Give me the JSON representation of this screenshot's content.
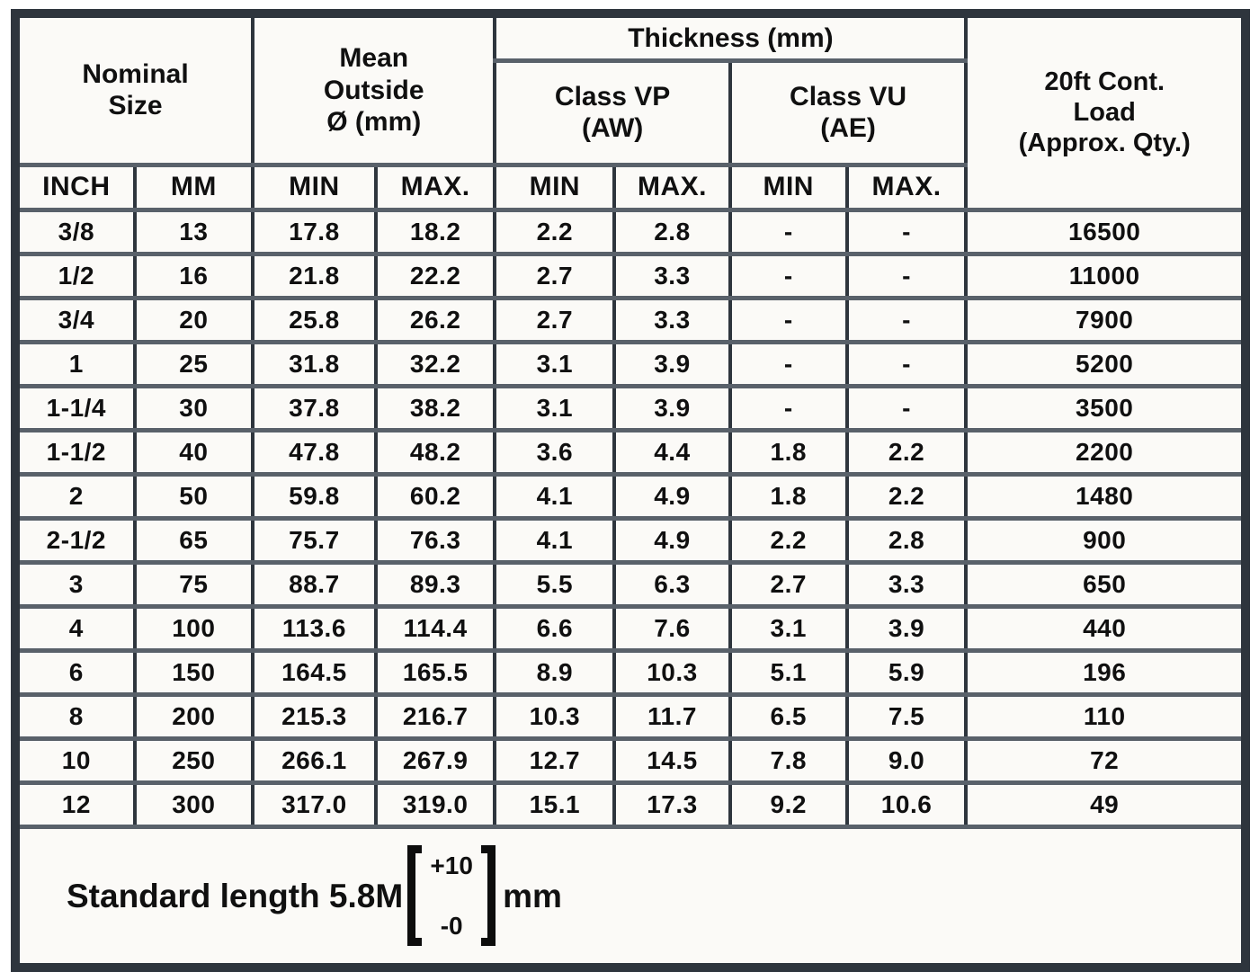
{
  "colors": {
    "border_dark": "#2e353d",
    "border_mid": "#59616a",
    "background": "#fbfaf7",
    "text": "#101010"
  },
  "table": {
    "header": {
      "nominal_size": "Nominal\nSize",
      "mean_outside": "Mean\nOutside\nØ (mm)",
      "thickness": "Thickness (mm)",
      "class_vp": "Class VP\n(AW)",
      "class_vu": "Class VU\n(AE)",
      "load": "20ft Cont.\nLoad\n(Approx. Qty.)",
      "sub_headers": [
        "INCH",
        "MM",
        "MIN",
        "MAX.",
        "MIN",
        "MAX.",
        "MIN",
        "MAX."
      ]
    },
    "rows": [
      [
        "3/8",
        "13",
        "17.8",
        "18.2",
        "2.2",
        "2.8",
        "-",
        "-",
        "16500"
      ],
      [
        "1/2",
        "16",
        "21.8",
        "22.2",
        "2.7",
        "3.3",
        "-",
        "-",
        "11000"
      ],
      [
        "3/4",
        "20",
        "25.8",
        "26.2",
        "2.7",
        "3.3",
        "-",
        "-",
        "7900"
      ],
      [
        "1",
        "25",
        "31.8",
        "32.2",
        "3.1",
        "3.9",
        "-",
        "-",
        "5200"
      ],
      [
        "1-1/4",
        "30",
        "37.8",
        "38.2",
        "3.1",
        "3.9",
        "-",
        "-",
        "3500"
      ],
      [
        "1-1/2",
        "40",
        "47.8",
        "48.2",
        "3.6",
        "4.4",
        "1.8",
        "2.2",
        "2200"
      ],
      [
        "2",
        "50",
        "59.8",
        "60.2",
        "4.1",
        "4.9",
        "1.8",
        "2.2",
        "1480"
      ],
      [
        "2-1/2",
        "65",
        "75.7",
        "76.3",
        "4.1",
        "4.9",
        "2.2",
        "2.8",
        "900"
      ],
      [
        "3",
        "75",
        "88.7",
        "89.3",
        "5.5",
        "6.3",
        "2.7",
        "3.3",
        "650"
      ],
      [
        "4",
        "100",
        "113.6",
        "114.4",
        "6.6",
        "7.6",
        "3.1",
        "3.9",
        "440"
      ],
      [
        "6",
        "150",
        "164.5",
        "165.5",
        "8.9",
        "10.3",
        "5.1",
        "5.9",
        "196"
      ],
      [
        "8",
        "200",
        "215.3",
        "216.7",
        "10.3",
        "11.7",
        "6.5",
        "7.5",
        "110"
      ],
      [
        "10",
        "250",
        "266.1",
        "267.9",
        "12.7",
        "14.5",
        "7.8",
        "9.0",
        "72"
      ],
      [
        "12",
        "300",
        "317.0",
        "319.0",
        "15.1",
        "17.3",
        "9.2",
        "10.6",
        "49"
      ]
    ],
    "footer": {
      "prefix": "Standard length 5.8M",
      "tolerance_plus": "+10",
      "tolerance_minus": "-0",
      "unit": "mm"
    }
  }
}
